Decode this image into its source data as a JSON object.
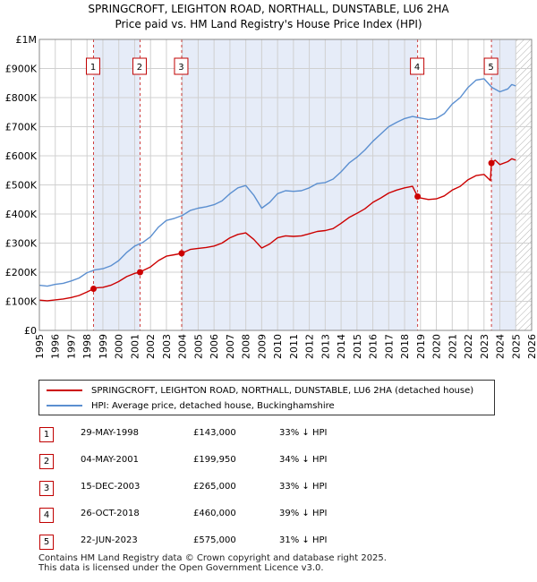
{
  "title": {
    "line1": "SPRINGCROFT, LEIGHTON ROAD, NORTHALL, DUNSTABLE, LU6 2HA",
    "line2": "Price paid vs. HM Land Registry's House Price Index (HPI)"
  },
  "legend": {
    "items": [
      {
        "label": "SPRINGCROFT, LEIGHTON ROAD, NORTHALL, DUNSTABLE, LU6 2HA (detached house)",
        "color": "#cc0000"
      },
      {
        "label": "HPI: Average price, detached house, Buckinghamshire",
        "color": "#5b8fd0"
      }
    ]
  },
  "sales": [
    {
      "num": "1",
      "date": "29-MAY-1998",
      "price": "£143,000",
      "hpi": "33% ↓ HPI"
    },
    {
      "num": "2",
      "date": "04-MAY-2001",
      "price": "£199,950",
      "hpi": "34% ↓ HPI"
    },
    {
      "num": "3",
      "date": "15-DEC-2003",
      "price": "£265,000",
      "hpi": "33% ↓ HPI"
    },
    {
      "num": "4",
      "date": "26-OCT-2018",
      "price": "£460,000",
      "hpi": "39% ↓ HPI"
    },
    {
      "num": "5",
      "date": "22-JUN-2023",
      "price": "£575,000",
      "hpi": "31% ↓ HPI"
    }
  ],
  "footer": {
    "line1": "Contains HM Land Registry data © Crown copyright and database right 2025.",
    "line2": "This data is licensed under the Open Government Licence v3.0."
  },
  "chart_data": {
    "type": "line",
    "title": "Price paid vs. HM Land Registry's House Price Index (HPI)",
    "xlabel": "",
    "ylabel": "",
    "xlim": [
      1995,
      2026
    ],
    "ylim": [
      0,
      1000000
    ],
    "x_ticks": [
      1995,
      1996,
      1997,
      1998,
      1999,
      2000,
      2001,
      2002,
      2003,
      2004,
      2005,
      2006,
      2007,
      2008,
      2009,
      2010,
      2011,
      2012,
      2013,
      2014,
      2015,
      2016,
      2017,
      2018,
      2019,
      2020,
      2021,
      2022,
      2023,
      2024,
      2025,
      2026
    ],
    "y_ticks": [
      {
        "value": 0,
        "label": "£0"
      },
      {
        "value": 100000,
        "label": "£100K"
      },
      {
        "value": 200000,
        "label": "£200K"
      },
      {
        "value": 300000,
        "label": "£300K"
      },
      {
        "value": 400000,
        "label": "£400K"
      },
      {
        "value": 500000,
        "label": "£500K"
      },
      {
        "value": 600000,
        "label": "£600K"
      },
      {
        "value": 700000,
        "label": "£700K"
      },
      {
        "value": 800000,
        "label": "£800K"
      },
      {
        "value": 900000,
        "label": "£900K"
      },
      {
        "value": 1000000,
        "label": "£1M"
      }
    ],
    "grid": true,
    "hatch_from": 2025.0,
    "shaded_periods": [
      [
        1998.41,
        2001.34
      ],
      [
        2003.96,
        2018.82
      ],
      [
        2023.47,
        2025.0
      ]
    ],
    "sale_markers": [
      {
        "label": "1",
        "x": 1998.41,
        "y": 143000
      },
      {
        "label": "2",
        "x": 2001.34,
        "y": 199950
      },
      {
        "label": "3",
        "x": 2003.96,
        "y": 265000
      },
      {
        "label": "4",
        "x": 2018.82,
        "y": 460000
      },
      {
        "label": "5",
        "x": 2023.47,
        "y": 575000
      }
    ],
    "series": [
      {
        "name": "HPI: Average price, detached house, Buckinghamshire",
        "color": "#5b8fd0",
        "points": [
          [
            1995.0,
            155000
          ],
          [
            1995.5,
            152000
          ],
          [
            1996.0,
            158000
          ],
          [
            1996.5,
            162000
          ],
          [
            1997.0,
            170000
          ],
          [
            1997.5,
            180000
          ],
          [
            1998.0,
            198000
          ],
          [
            1998.5,
            208000
          ],
          [
            1999.0,
            212000
          ],
          [
            1999.5,
            222000
          ],
          [
            2000.0,
            240000
          ],
          [
            2000.5,
            268000
          ],
          [
            2001.0,
            290000
          ],
          [
            2001.5,
            302000
          ],
          [
            2002.0,
            322000
          ],
          [
            2002.5,
            355000
          ],
          [
            2003.0,
            378000
          ],
          [
            2003.5,
            385000
          ],
          [
            2004.0,
            395000
          ],
          [
            2004.5,
            412000
          ],
          [
            2005.0,
            420000
          ],
          [
            2005.5,
            425000
          ],
          [
            2006.0,
            432000
          ],
          [
            2006.5,
            445000
          ],
          [
            2007.0,
            470000
          ],
          [
            2007.5,
            490000
          ],
          [
            2008.0,
            498000
          ],
          [
            2008.5,
            465000
          ],
          [
            2009.0,
            420000
          ],
          [
            2009.5,
            440000
          ],
          [
            2010.0,
            470000
          ],
          [
            2010.5,
            480000
          ],
          [
            2011.0,
            478000
          ],
          [
            2011.5,
            480000
          ],
          [
            2012.0,
            490000
          ],
          [
            2012.5,
            505000
          ],
          [
            2013.0,
            508000
          ],
          [
            2013.5,
            520000
          ],
          [
            2014.0,
            545000
          ],
          [
            2014.5,
            575000
          ],
          [
            2015.0,
            595000
          ],
          [
            2015.5,
            620000
          ],
          [
            2016.0,
            650000
          ],
          [
            2016.5,
            675000
          ],
          [
            2017.0,
            700000
          ],
          [
            2017.5,
            715000
          ],
          [
            2018.0,
            728000
          ],
          [
            2018.5,
            735000
          ],
          [
            2019.0,
            730000
          ],
          [
            2019.5,
            725000
          ],
          [
            2020.0,
            728000
          ],
          [
            2020.5,
            745000
          ],
          [
            2021.0,
            778000
          ],
          [
            2021.5,
            800000
          ],
          [
            2022.0,
            835000
          ],
          [
            2022.5,
            860000
          ],
          [
            2023.0,
            865000
          ],
          [
            2023.5,
            835000
          ],
          [
            2024.0,
            820000
          ],
          [
            2024.5,
            830000
          ],
          [
            2024.75,
            845000
          ],
          [
            2025.0,
            840000
          ]
        ]
      },
      {
        "name": "SPRINGCROFT, LEIGHTON ROAD, NORTHALL, DUNSTABLE, LU6 2HA (detached house)",
        "color": "#cc0000",
        "points": [
          [
            1995.0,
            104000
          ],
          [
            1995.5,
            102000
          ],
          [
            1996.0,
            105000
          ],
          [
            1996.5,
            108000
          ],
          [
            1997.0,
            113000
          ],
          [
            1997.5,
            120000
          ],
          [
            1998.0,
            132000
          ],
          [
            1998.41,
            143000
          ],
          [
            1998.5,
            146000
          ],
          [
            1999.0,
            148000
          ],
          [
            1999.5,
            155000
          ],
          [
            2000.0,
            168000
          ],
          [
            2000.5,
            185000
          ],
          [
            2001.0,
            196000
          ],
          [
            2001.34,
            199950
          ],
          [
            2001.5,
            205000
          ],
          [
            2002.0,
            218000
          ],
          [
            2002.5,
            240000
          ],
          [
            2003.0,
            255000
          ],
          [
            2003.5,
            260000
          ],
          [
            2003.96,
            265000
          ],
          [
            2004.5,
            278000
          ],
          [
            2005.0,
            282000
          ],
          [
            2005.5,
            285000
          ],
          [
            2006.0,
            290000
          ],
          [
            2006.5,
            300000
          ],
          [
            2007.0,
            318000
          ],
          [
            2007.5,
            330000
          ],
          [
            2008.0,
            335000
          ],
          [
            2008.5,
            313000
          ],
          [
            2009.0,
            283000
          ],
          [
            2009.5,
            297000
          ],
          [
            2010.0,
            318000
          ],
          [
            2010.5,
            325000
          ],
          [
            2011.0,
            323000
          ],
          [
            2011.5,
            325000
          ],
          [
            2012.0,
            332000
          ],
          [
            2012.5,
            340000
          ],
          [
            2013.0,
            343000
          ],
          [
            2013.5,
            350000
          ],
          [
            2014.0,
            368000
          ],
          [
            2014.5,
            388000
          ],
          [
            2015.0,
            402000
          ],
          [
            2015.5,
            418000
          ],
          [
            2016.0,
            440000
          ],
          [
            2016.5,
            455000
          ],
          [
            2017.0,
            472000
          ],
          [
            2017.5,
            482000
          ],
          [
            2018.0,
            490000
          ],
          [
            2018.5,
            495000
          ],
          [
            2018.82,
            460000
          ],
          [
            2019.0,
            455000
          ],
          [
            2019.5,
            450000
          ],
          [
            2020.0,
            452000
          ],
          [
            2020.5,
            462000
          ],
          [
            2021.0,
            482000
          ],
          [
            2021.5,
            495000
          ],
          [
            2022.0,
            518000
          ],
          [
            2022.5,
            532000
          ],
          [
            2023.0,
            536000
          ],
          [
            2023.4,
            515000
          ],
          [
            2023.47,
            575000
          ],
          [
            2023.7,
            585000
          ],
          [
            2024.0,
            570000
          ],
          [
            2024.5,
            580000
          ],
          [
            2024.75,
            590000
          ],
          [
            2025.0,
            585000
          ]
        ]
      }
    ]
  }
}
